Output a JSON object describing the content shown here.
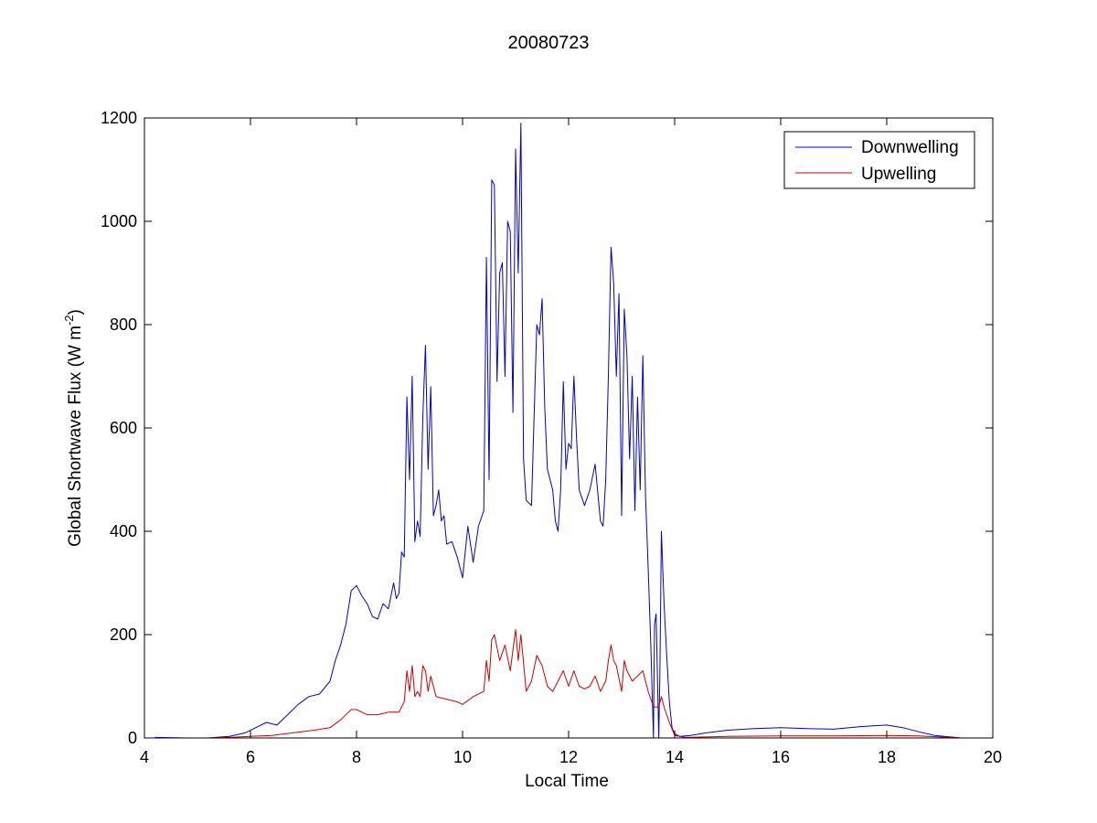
{
  "chart_data": {
    "type": "line",
    "title": "20080723",
    "xlabel": "Local Time",
    "ylabel_prefix": "Global Shortwave Flux (W m",
    "ylabel_sup": "-2",
    "ylabel_suffix": ")",
    "xlim": [
      4,
      20
    ],
    "ylim": [
      0,
      1200
    ],
    "xticks": [
      4,
      6,
      8,
      10,
      12,
      14,
      16,
      18,
      20
    ],
    "yticks": [
      0,
      200,
      400,
      600,
      800,
      1000,
      1200
    ],
    "grid": false,
    "legend_position": "top-right",
    "series": [
      {
        "name": "Downwelling",
        "color": "#0000cc",
        "points": [
          [
            4.2,
            1
          ],
          [
            4.8,
            0
          ],
          [
            5.2,
            0
          ],
          [
            5.6,
            3
          ],
          [
            5.9,
            10
          ],
          [
            6.1,
            20
          ],
          [
            6.3,
            30
          ],
          [
            6.5,
            25
          ],
          [
            6.7,
            45
          ],
          [
            6.9,
            65
          ],
          [
            7.1,
            80
          ],
          [
            7.3,
            85
          ],
          [
            7.5,
            110
          ],
          [
            7.6,
            150
          ],
          [
            7.7,
            180
          ],
          [
            7.8,
            220
          ],
          [
            7.9,
            285
          ],
          [
            8.0,
            295
          ],
          [
            8.1,
            275
          ],
          [
            8.2,
            260
          ],
          [
            8.3,
            235
          ],
          [
            8.4,
            230
          ],
          [
            8.5,
            260
          ],
          [
            8.6,
            250
          ],
          [
            8.7,
            300
          ],
          [
            8.75,
            270
          ],
          [
            8.8,
            280
          ],
          [
            8.85,
            360
          ],
          [
            8.9,
            350
          ],
          [
            8.95,
            660
          ],
          [
            9.0,
            500
          ],
          [
            9.05,
            700
          ],
          [
            9.1,
            380
          ],
          [
            9.15,
            420
          ],
          [
            9.2,
            390
          ],
          [
            9.25,
            620
          ],
          [
            9.3,
            760
          ],
          [
            9.35,
            520
          ],
          [
            9.4,
            680
          ],
          [
            9.45,
            430
          ],
          [
            9.5,
            450
          ],
          [
            9.55,
            480
          ],
          [
            9.6,
            420
          ],
          [
            9.65,
            430
          ],
          [
            9.7,
            375
          ],
          [
            9.8,
            380
          ],
          [
            9.9,
            350
          ],
          [
            10.0,
            310
          ],
          [
            10.1,
            410
          ],
          [
            10.2,
            340
          ],
          [
            10.3,
            410
          ],
          [
            10.4,
            440
          ],
          [
            10.45,
            930
          ],
          [
            10.5,
            500
          ],
          [
            10.55,
            1080
          ],
          [
            10.6,
            1070
          ],
          [
            10.65,
            690
          ],
          [
            10.7,
            900
          ],
          [
            10.75,
            920
          ],
          [
            10.8,
            700
          ],
          [
            10.85,
            1000
          ],
          [
            10.9,
            980
          ],
          [
            10.95,
            630
          ],
          [
            11.0,
            1140
          ],
          [
            11.05,
            900
          ],
          [
            11.1,
            1190
          ],
          [
            11.15,
            540
          ],
          [
            11.2,
            460
          ],
          [
            11.3,
            450
          ],
          [
            11.4,
            800
          ],
          [
            11.45,
            780
          ],
          [
            11.5,
            850
          ],
          [
            11.55,
            640
          ],
          [
            11.6,
            520
          ],
          [
            11.7,
            480
          ],
          [
            11.75,
            420
          ],
          [
            11.8,
            400
          ],
          [
            11.85,
            480
          ],
          [
            11.9,
            690
          ],
          [
            11.95,
            520
          ],
          [
            12.0,
            570
          ],
          [
            12.05,
            560
          ],
          [
            12.1,
            700
          ],
          [
            12.15,
            580
          ],
          [
            12.2,
            480
          ],
          [
            12.3,
            450
          ],
          [
            12.4,
            480
          ],
          [
            12.5,
            530
          ],
          [
            12.6,
            420
          ],
          [
            12.65,
            410
          ],
          [
            12.7,
            500
          ],
          [
            12.75,
            700
          ],
          [
            12.8,
            950
          ],
          [
            12.85,
            880
          ],
          [
            12.9,
            700
          ],
          [
            12.95,
            860
          ],
          [
            13.0,
            430
          ],
          [
            13.05,
            830
          ],
          [
            13.1,
            740
          ],
          [
            13.15,
            540
          ],
          [
            13.2,
            700
          ],
          [
            13.25,
            440
          ],
          [
            13.3,
            660
          ],
          [
            13.35,
            480
          ],
          [
            13.4,
            740
          ],
          [
            13.45,
            470
          ],
          [
            13.5,
            330
          ],
          [
            13.55,
            180
          ],
          [
            13.6,
            0
          ],
          [
            13.62,
            220
          ],
          [
            13.65,
            240
          ],
          [
            13.7,
            0
          ],
          [
            13.72,
            120
          ],
          [
            13.75,
            400
          ],
          [
            13.8,
            260
          ],
          [
            13.85,
            160
          ],
          [
            13.9,
            70
          ],
          [
            13.95,
            20
          ],
          [
            14.0,
            8
          ],
          [
            14.1,
            3
          ],
          [
            14.3,
            5
          ],
          [
            14.6,
            10
          ],
          [
            15.0,
            15
          ],
          [
            15.5,
            18
          ],
          [
            16.0,
            20
          ],
          [
            16.5,
            18
          ],
          [
            17.0,
            17
          ],
          [
            17.5,
            22
          ],
          [
            18.0,
            25
          ],
          [
            18.3,
            20
          ],
          [
            18.6,
            12
          ],
          [
            18.9,
            5
          ],
          [
            19.2,
            2
          ],
          [
            19.4,
            0
          ]
        ]
      },
      {
        "name": "Upwelling",
        "color": "#cc0000",
        "points": [
          [
            4.2,
            0
          ],
          [
            4.8,
            0
          ],
          [
            5.2,
            0
          ],
          [
            5.6,
            1
          ],
          [
            6.0,
            3
          ],
          [
            6.4,
            5
          ],
          [
            6.8,
            10
          ],
          [
            7.2,
            15
          ],
          [
            7.5,
            20
          ],
          [
            7.7,
            35
          ],
          [
            7.9,
            55
          ],
          [
            8.0,
            55
          ],
          [
            8.2,
            45
          ],
          [
            8.4,
            45
          ],
          [
            8.6,
            50
          ],
          [
            8.8,
            50
          ],
          [
            8.9,
            70
          ],
          [
            8.95,
            130
          ],
          [
            9.0,
            90
          ],
          [
            9.05,
            140
          ],
          [
            9.1,
            80
          ],
          [
            9.15,
            90
          ],
          [
            9.2,
            80
          ],
          [
            9.25,
            140
          ],
          [
            9.3,
            130
          ],
          [
            9.35,
            90
          ],
          [
            9.4,
            120
          ],
          [
            9.5,
            80
          ],
          [
            9.7,
            75
          ],
          [
            9.9,
            70
          ],
          [
            10.0,
            65
          ],
          [
            10.2,
            80
          ],
          [
            10.4,
            90
          ],
          [
            10.45,
            150
          ],
          [
            10.5,
            110
          ],
          [
            10.55,
            190
          ],
          [
            10.6,
            200
          ],
          [
            10.7,
            150
          ],
          [
            10.8,
            180
          ],
          [
            10.9,
            130
          ],
          [
            11.0,
            210
          ],
          [
            11.05,
            150
          ],
          [
            11.1,
            200
          ],
          [
            11.2,
            90
          ],
          [
            11.3,
            110
          ],
          [
            11.4,
            160
          ],
          [
            11.5,
            140
          ],
          [
            11.6,
            100
          ],
          [
            11.7,
            90
          ],
          [
            11.8,
            110
          ],
          [
            11.9,
            130
          ],
          [
            12.0,
            100
          ],
          [
            12.1,
            130
          ],
          [
            12.2,
            100
          ],
          [
            12.3,
            95
          ],
          [
            12.4,
            100
          ],
          [
            12.5,
            120
          ],
          [
            12.6,
            90
          ],
          [
            12.7,
            110
          ],
          [
            12.75,
            150
          ],
          [
            12.8,
            180
          ],
          [
            12.85,
            150
          ],
          [
            12.9,
            140
          ],
          [
            13.0,
            90
          ],
          [
            13.05,
            150
          ],
          [
            13.1,
            130
          ],
          [
            13.2,
            110
          ],
          [
            13.3,
            120
          ],
          [
            13.4,
            130
          ],
          [
            13.5,
            90
          ],
          [
            13.6,
            60
          ],
          [
            13.7,
            60
          ],
          [
            13.75,
            80
          ],
          [
            13.8,
            60
          ],
          [
            13.9,
            30
          ],
          [
            14.0,
            5
          ],
          [
            14.2,
            1
          ],
          [
            14.6,
            2
          ],
          [
            15.0,
            3
          ],
          [
            16.0,
            4
          ],
          [
            17.0,
            4
          ],
          [
            18.0,
            5
          ],
          [
            18.6,
            4
          ],
          [
            19.0,
            2
          ],
          [
            19.4,
            0
          ]
        ]
      }
    ]
  }
}
